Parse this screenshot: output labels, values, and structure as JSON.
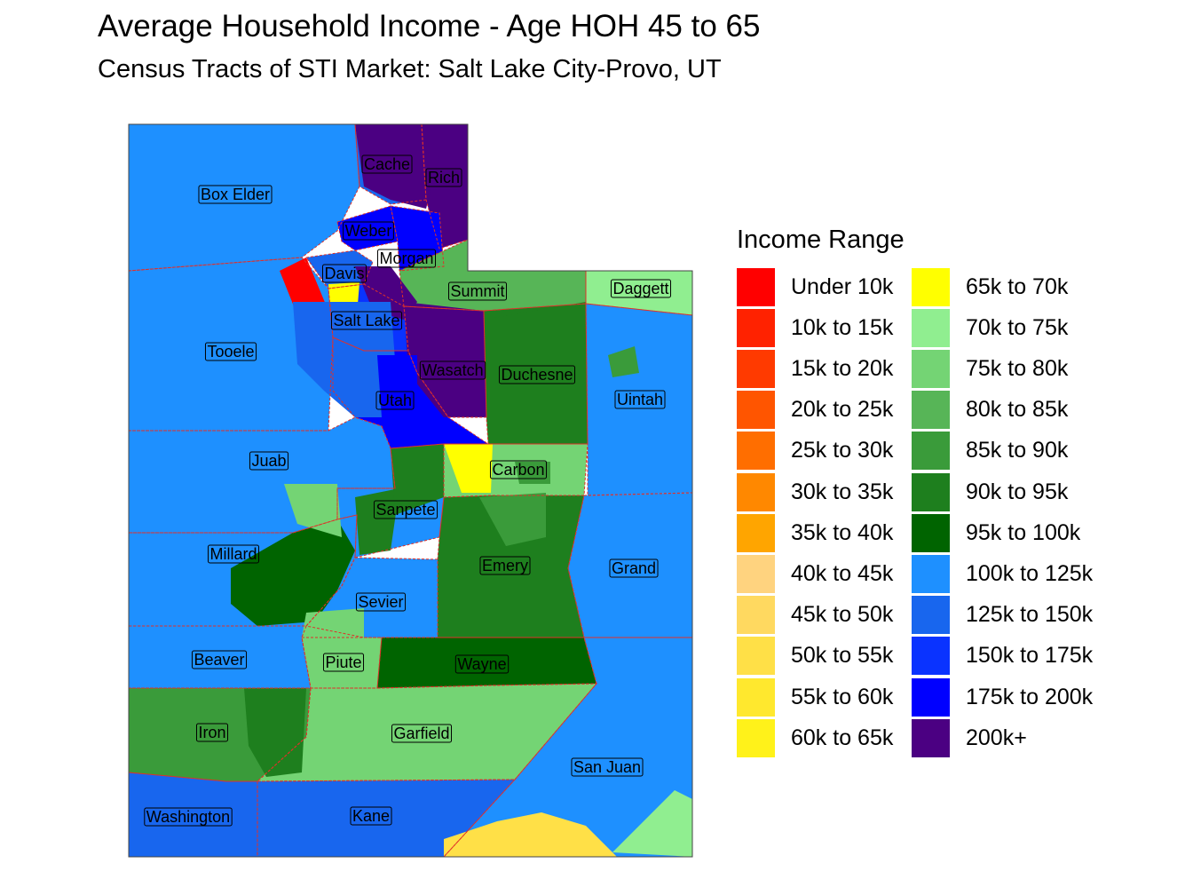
{
  "title": "Average Household Income - Age HOH 45 to 65",
  "subtitle": "Census Tracts of STI Market: Salt Lake City-Provo, UT",
  "legend": {
    "title": "Income Range",
    "items": [
      {
        "label": "Under 10k",
        "color": "#ff0000"
      },
      {
        "label": "10k to 15k",
        "color": "#ff2200"
      },
      {
        "label": "15k to 20k",
        "color": "#ff3a00"
      },
      {
        "label": "20k to 25k",
        "color": "#ff5500"
      },
      {
        "label": "25k to 30k",
        "color": "#ff6e00"
      },
      {
        "label": "30k to 35k",
        "color": "#ff8800"
      },
      {
        "label": "35k to 40k",
        "color": "#ffa500"
      },
      {
        "label": "40k to 45k",
        "color": "#ffd37f"
      },
      {
        "label": "45k to 50k",
        "color": "#ffd960"
      },
      {
        "label": "50k to 55k",
        "color": "#ffe047"
      },
      {
        "label": "55k to 60k",
        "color": "#ffe82e"
      },
      {
        "label": "60k to 65k",
        "color": "#fff21a"
      },
      {
        "label": "65k to 70k",
        "color": "#ffff00"
      },
      {
        "label": "70k to 75k",
        "color": "#90ee90"
      },
      {
        "label": "75k to 80k",
        "color": "#74d474"
      },
      {
        "label": "80k to 85k",
        "color": "#57b557"
      },
      {
        "label": "85k to 90k",
        "color": "#3a9b3a"
      },
      {
        "label": "90k to 95k",
        "color": "#1e7f1e"
      },
      {
        "label": "95k to 100k",
        "color": "#006400"
      },
      {
        "label": "100k to 125k",
        "color": "#1e90ff"
      },
      {
        "label": "125k to 150k",
        "color": "#1866ee"
      },
      {
        "label": "150k to 175k",
        "color": "#0a33ff"
      },
      {
        "label": "175k to 200k",
        "color": "#0000ff"
      },
      {
        "label": "200k+",
        "color": "#4b0082"
      }
    ]
  },
  "counties": [
    {
      "name": "Box Elder",
      "color": "#1e90ff"
    },
    {
      "name": "Cache",
      "color": "#1866ee"
    },
    {
      "name": "Rich",
      "color": "#4b0082"
    },
    {
      "name": "Weber",
      "color": "#0000ff"
    },
    {
      "name": "Morgan",
      "color": "#0000ff"
    },
    {
      "name": "Davis",
      "color": "#1866ee"
    },
    {
      "name": "Summit",
      "color": "#57b557"
    },
    {
      "name": "Daggett",
      "color": "#90ee90"
    },
    {
      "name": "Salt Lake",
      "color": "#0a33ff"
    },
    {
      "name": "Tooele",
      "color": "#1e90ff"
    },
    {
      "name": "Wasatch",
      "color": "#4b0082"
    },
    {
      "name": "Duchesne",
      "color": "#1e7f1e"
    },
    {
      "name": "Uintah",
      "color": "#1e90ff"
    },
    {
      "name": "Utah",
      "color": "#0000ff"
    },
    {
      "name": "Juab",
      "color": "#1e90ff"
    },
    {
      "name": "Carbon",
      "color": "#74d474"
    },
    {
      "name": "Sanpete",
      "color": "#1e90ff"
    },
    {
      "name": "Millard",
      "color": "#1e90ff"
    },
    {
      "name": "Emery",
      "color": "#1e7f1e"
    },
    {
      "name": "Grand",
      "color": "#1e90ff"
    },
    {
      "name": "Sevier",
      "color": "#1e90ff"
    },
    {
      "name": "Beaver",
      "color": "#1e90ff"
    },
    {
      "name": "Piute",
      "color": "#74d474"
    },
    {
      "name": "Wayne",
      "color": "#006400"
    },
    {
      "name": "Iron",
      "color": "#3a9b3a"
    },
    {
      "name": "Garfield",
      "color": "#74d474"
    },
    {
      "name": "San Juan",
      "color": "#1e90ff"
    },
    {
      "name": "Washington",
      "color": "#1866ee"
    },
    {
      "name": "Kane",
      "color": "#1866ee"
    }
  ]
}
